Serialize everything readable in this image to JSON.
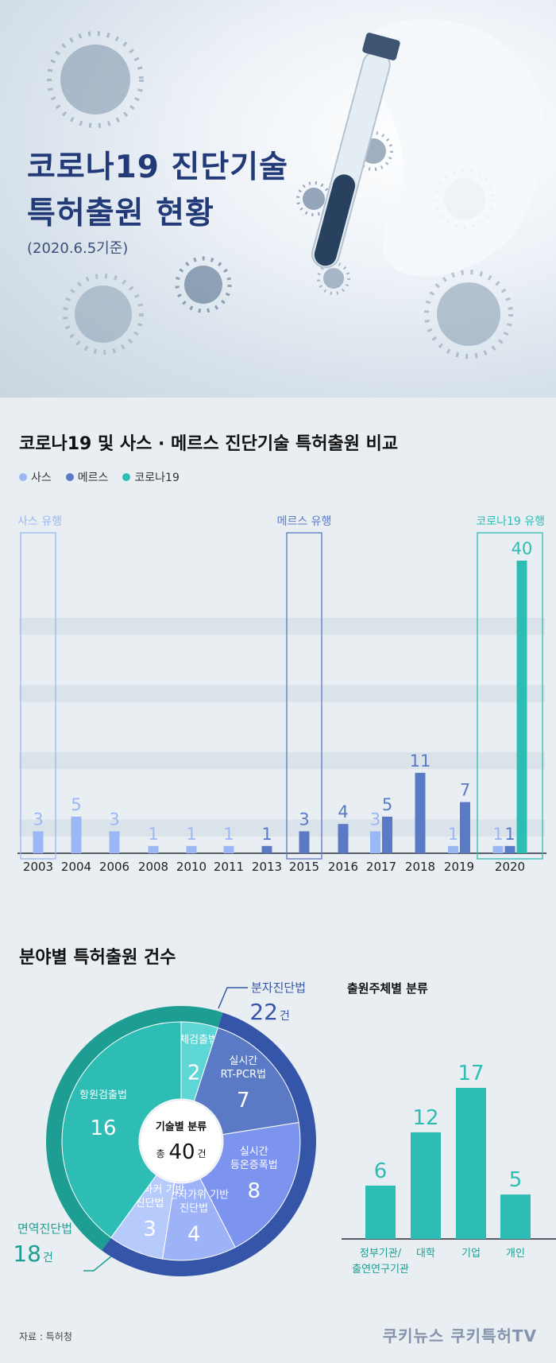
{
  "hero": {
    "title_line1": "코로나19 진단기술",
    "title_line2": "특허출원 현황",
    "subtitle": "(2020.6.5기준)"
  },
  "bar_section": {
    "title": "코로나19 및 사스 · 메르스 진단기술 특허출원 비교",
    "legend": [
      {
        "label": "사스",
        "color": "#9bb8f5"
      },
      {
        "label": "메르스",
        "color": "#5b7ac6"
      },
      {
        "label": "코로나19",
        "color": "#2ebdb4"
      }
    ],
    "annotations": [
      {
        "label": "사스 유행",
        "year": "2003",
        "color": "#9bb8f5"
      },
      {
        "label": "메르스 유행",
        "year": "2015",
        "color": "#5b7ac6"
      },
      {
        "label": "코로나19 유행",
        "year": "2020",
        "color": "#2ebdb4"
      }
    ]
  },
  "pie_section": {
    "title": "분야별 특허출원 건수",
    "center_label": "기술별 분류",
    "center_total_prefix": "총",
    "center_total": "40",
    "center_total_unit": "건",
    "outer": [
      {
        "label": "분자진단법",
        "value": "22",
        "unit": "건"
      },
      {
        "label": "면역진단법",
        "value": "18",
        "unit": "건"
      }
    ]
  },
  "applicant_section": {
    "title": "출원주체별 분류"
  },
  "footer": {
    "source": "자료 : 특허청",
    "brand": "쿠키뉴스 쿠키특허TV"
  },
  "chart_data": [
    {
      "type": "bar",
      "categories": [
        "2003",
        "2004",
        "2006",
        "2008",
        "2010",
        "2011",
        "2013",
        "2015",
        "2016",
        "2017",
        "2018",
        "2019",
        "2020"
      ],
      "series": [
        {
          "name": "사스",
          "values": [
            3,
            5,
            3,
            1,
            1,
            1,
            null,
            null,
            null,
            3,
            null,
            1,
            1
          ]
        },
        {
          "name": "메르스",
          "values": [
            null,
            null,
            null,
            null,
            null,
            null,
            1,
            3,
            4,
            5,
            11,
            7,
            1
          ]
        },
        {
          "name": "코로나19",
          "values": [
            null,
            null,
            null,
            null,
            null,
            null,
            null,
            null,
            null,
            null,
            null,
            null,
            40
          ]
        }
      ],
      "ylim": [
        0,
        40
      ]
    },
    {
      "type": "pie",
      "categories": [
        "항체검출법",
        "실시간 RT-PCR법",
        "실시간 등온증폭법",
        "유전자가위 기반 진단법",
        "바이오마커 기반 진단법",
        "항원검출법"
      ],
      "values": [
        2,
        7,
        8,
        4,
        3,
        16
      ],
      "colors": [
        "#5fd6d6",
        "#5b7ac6",
        "#7d94ee",
        "#9db2f7",
        "#b7cafc",
        "#2ebdb4"
      ]
    },
    {
      "type": "bar",
      "categories": [
        "정부기관/\n출연연구기관",
        "대학",
        "기업",
        "개인"
      ],
      "values": [
        6,
        12,
        17,
        5
      ],
      "color": "#2ebdb4"
    }
  ]
}
